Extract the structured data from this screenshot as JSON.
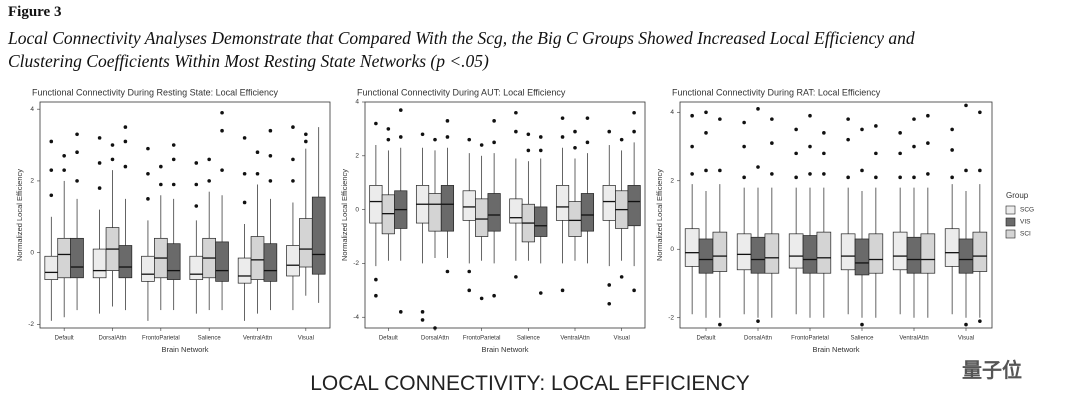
{
  "figure_label": "Figure 3",
  "caption": [
    "Local Connectivity Analyses Demonstrate that Compared With the Scg, the Big C Groups Showed Increased Local Efficiency and",
    "Clustering Coefficients Within Most Resting State Networks (p <.05)"
  ],
  "footer": "LOCAL CONNECTIVITY: LOCAL EFFICIENCY",
  "watermark": "量子位",
  "chart_data": [
    {
      "type": "box",
      "title": "Functional Connectivity During Resting State: Local Efficiency",
      "xlabel": "Brain Network",
      "ylabel": "Normalized Local Efficiency",
      "categories": [
        "Default",
        "DorsalAttn",
        "FrontoParietal",
        "Salience",
        "VentralAttn",
        "Visual"
      ],
      "ylim": [
        -2.1,
        4.2
      ],
      "yticks": [
        -2,
        0,
        2,
        4
      ],
      "legend": false,
      "series": [
        {
          "color": "#ececec",
          "values": [
            [
              -1.9,
              -0.75,
              -0.55,
              -0.1,
              1.0
            ],
            [
              -1.7,
              -0.7,
              -0.5,
              0.1,
              1.2
            ],
            [
              -1.9,
              -0.8,
              -0.6,
              -0.1,
              0.9
            ],
            [
              -1.7,
              -0.75,
              -0.6,
              -0.1,
              0.9
            ],
            [
              -1.9,
              -0.85,
              -0.65,
              -0.15,
              0.8
            ],
            [
              -1.6,
              -0.65,
              -0.35,
              0.2,
              1.4
            ]
          ],
          "outliers": [
            [
              1.6,
              2.3,
              3.1
            ],
            [
              1.8,
              2.5,
              3.2
            ],
            [
              1.5,
              2.2,
              2.9
            ],
            [
              1.3,
              1.9,
              2.5
            ],
            [
              1.4,
              2.2,
              3.2
            ],
            [
              2.0,
              2.6,
              3.5
            ]
          ]
        },
        {
          "color": "#d4d4d4",
          "values": [
            [
              -1.8,
              -0.7,
              -0.05,
              0.4,
              2.0
            ],
            [
              -1.5,
              -0.5,
              0.1,
              0.7,
              2.3
            ],
            [
              -1.6,
              -0.7,
              -0.15,
              0.4,
              1.6
            ],
            [
              -1.6,
              -0.7,
              -0.15,
              0.4,
              1.7
            ],
            [
              -1.7,
              -0.75,
              -0.2,
              0.45,
              1.9
            ],
            [
              -1.2,
              -0.4,
              0.1,
              0.95,
              2.9
            ]
          ],
          "outliers": [
            [
              2.3,
              2.7
            ],
            [
              2.6,
              3.0
            ],
            [
              1.9,
              2.4
            ],
            [
              2.0,
              2.6
            ],
            [
              2.2,
              2.8
            ],
            [
              3.1,
              3.3
            ]
          ]
        },
        {
          "color": "#6a6a6a",
          "values": [
            [
              -1.6,
              -0.7,
              -0.4,
              0.4,
              1.5
            ],
            [
              -1.6,
              -0.7,
              -0.4,
              0.2,
              1.5
            ],
            [
              -1.6,
              -0.75,
              -0.5,
              0.25,
              1.5
            ],
            [
              -1.6,
              -0.8,
              -0.5,
              0.3,
              1.6
            ],
            [
              -1.6,
              -0.8,
              -0.5,
              0.25,
              1.5
            ],
            [
              -1.4,
              -0.6,
              -0.05,
              1.55,
              3.5
            ]
          ],
          "outliers": [
            [
              2.0,
              2.8,
              3.3
            ],
            [
              2.4,
              3.1,
              3.5
            ],
            [
              1.9,
              2.6,
              3.0
            ],
            [
              2.3,
              3.4,
              3.9
            ],
            [
              2.0,
              2.7,
              3.4
            ],
            []
          ]
        }
      ]
    },
    {
      "type": "box",
      "title": "Functional Connectivity During AUT: Local Efficiency",
      "xlabel": "Brain Network",
      "ylabel": "Normalized Local Efficiency",
      "categories": [
        "Default",
        "DorsalAttn",
        "FrontoParietal",
        "Salience",
        "VentralAttn",
        "Visual"
      ],
      "ylim": [
        -4.4,
        4.0
      ],
      "yticks": [
        -4,
        -2,
        0,
        2,
        4
      ],
      "legend": false,
      "series": [
        {
          "color": "#ececec",
          "values": [
            [
              -2.1,
              -0.5,
              0.3,
              0.9,
              2.4
            ],
            [
              -2.0,
              -0.5,
              0.2,
              0.9,
              2.3
            ],
            [
              -2.0,
              -0.4,
              0.1,
              0.7,
              2.1
            ],
            [
              -1.9,
              -0.5,
              -0.3,
              0.4,
              1.9
            ],
            [
              -2.0,
              -0.4,
              0.1,
              0.9,
              2.3
            ],
            [
              -2.1,
              -0.4,
              0.3,
              0.9,
              2.4
            ]
          ],
          "outliers": [
            [
              -2.6,
              -3.2,
              3.2
            ],
            [
              -3.8,
              -4.1,
              2.8
            ],
            [
              -2.3,
              -3.0,
              2.6
            ],
            [
              -2.5,
              2.9,
              3.6
            ],
            [
              -3.0,
              2.7,
              3.4
            ],
            [
              -2.8,
              -3.5,
              2.9
            ]
          ]
        },
        {
          "color": "#d4d4d4",
          "values": [
            [
              -1.9,
              -0.9,
              -0.15,
              0.55,
              2.2
            ],
            [
              -1.8,
              -0.8,
              0.2,
              0.6,
              2.2
            ],
            [
              -1.9,
              -1.0,
              -0.35,
              0.4,
              2.0
            ],
            [
              -1.9,
              -1.2,
              -0.5,
              0.2,
              1.8
            ],
            [
              -1.9,
              -1.0,
              -0.4,
              0.3,
              1.9
            ],
            [
              -1.9,
              -0.7,
              0.0,
              0.7,
              2.2
            ]
          ],
          "outliers": [
            [
              2.6,
              3.0
            ],
            [
              -4.4,
              2.6
            ],
            [
              -3.3,
              2.4
            ],
            [
              2.2,
              2.8
            ],
            [
              2.3,
              2.9
            ],
            [
              -2.5,
              2.6
            ]
          ]
        },
        {
          "color": "#6a6a6a",
          "values": [
            [
              -1.9,
              -0.7,
              0.0,
              0.7,
              2.3
            ],
            [
              -1.8,
              -0.8,
              0.2,
              0.9,
              2.3
            ],
            [
              -2.0,
              -0.8,
              -0.2,
              0.6,
              2.1
            ],
            [
              -2.0,
              -1.0,
              -0.6,
              0.1,
              1.9
            ],
            [
              -2.0,
              -0.8,
              -0.2,
              0.6,
              2.1
            ],
            [
              -2.1,
              -0.6,
              0.3,
              0.9,
              2.5
            ]
          ],
          "outliers": [
            [
              -3.8,
              2.7,
              3.7
            ],
            [
              -2.3,
              2.7,
              3.3
            ],
            [
              -3.2,
              2.5,
              3.3
            ],
            [
              -3.1,
              2.2,
              2.7
            ],
            [
              2.5,
              3.4
            ],
            [
              -3.0,
              2.9,
              3.6
            ]
          ]
        }
      ]
    },
    {
      "type": "box",
      "title": "Functional Connectivity During RAT: Local Efficiency",
      "xlabel": "Brain Network",
      "ylabel": "Normalized Local Efficiency",
      "categories": [
        "Default",
        "DorsalAttn",
        "FrontoParietal",
        "Salience",
        "VentralAttn",
        "Visual"
      ],
      "ylim": [
        -2.3,
        4.3
      ],
      "yticks": [
        -2,
        0,
        2,
        4
      ],
      "legend": true,
      "legend_title": "Group",
      "series": [
        {
          "name": "SCG",
          "color": "#ececec",
          "values": [
            [
              -1.9,
              -0.5,
              -0.1,
              0.6,
              1.9
            ],
            [
              -1.9,
              -0.6,
              -0.15,
              0.45,
              1.8
            ],
            [
              -1.9,
              -0.55,
              -0.2,
              0.45,
              1.8
            ],
            [
              -1.9,
              -0.6,
              -0.2,
              0.45,
              1.8
            ],
            [
              -1.9,
              -0.6,
              -0.2,
              0.5,
              1.8
            ],
            [
              -1.9,
              -0.5,
              -0.1,
              0.6,
              1.9
            ]
          ],
          "outliers": [
            [
              2.2,
              3.0,
              3.9
            ],
            [
              2.1,
              3.0,
              3.7
            ],
            [
              2.1,
              2.8,
              3.5
            ],
            [
              2.1,
              3.2,
              3.8
            ],
            [
              2.1,
              2.8,
              3.4
            ],
            [
              2.1,
              2.9,
              3.5
            ]
          ]
        },
        {
          "name": "VIS",
          "color": "#6a6a6a",
          "values": [
            [
              -2.0,
              -0.7,
              -0.3,
              0.3,
              1.7
            ],
            [
              -2.0,
              -0.7,
              -0.3,
              0.35,
              1.8
            ],
            [
              -2.0,
              -0.7,
              -0.3,
              0.4,
              1.8
            ],
            [
              -2.0,
              -0.75,
              -0.4,
              0.3,
              1.7
            ],
            [
              -2.0,
              -0.7,
              -0.3,
              0.35,
              1.8
            ],
            [
              -2.0,
              -0.7,
              -0.3,
              0.3,
              1.7
            ]
          ],
          "outliers": [
            [
              2.3,
              3.4,
              4.0
            ],
            [
              -2.1,
              2.4,
              4.1
            ],
            [
              2.2,
              3.0,
              3.9
            ],
            [
              -2.2,
              2.3,
              3.5
            ],
            [
              2.1,
              3.0,
              3.8
            ],
            [
              -2.2,
              2.3,
              4.2
            ]
          ]
        },
        {
          "name": "SCI",
          "color": "#d4d4d4",
          "values": [
            [
              -2.0,
              -0.65,
              -0.2,
              0.5,
              1.9
            ],
            [
              -2.0,
              -0.7,
              -0.25,
              0.45,
              1.8
            ],
            [
              -2.0,
              -0.7,
              -0.25,
              0.5,
              1.8
            ],
            [
              -2.0,
              -0.7,
              -0.3,
              0.45,
              1.8
            ],
            [
              -2.0,
              -0.7,
              -0.3,
              0.45,
              1.8
            ],
            [
              -2.0,
              -0.65,
              -0.2,
              0.5,
              1.9
            ]
          ],
          "outliers": [
            [
              -2.2,
              2.3,
              3.8
            ],
            [
              2.2,
              3.1,
              3.8
            ],
            [
              2.2,
              2.8,
              3.4
            ],
            [
              2.1,
              2.8,
              3.6
            ],
            [
              2.2,
              3.1,
              3.9
            ],
            [
              -2.1,
              2.3,
              4.0
            ]
          ]
        }
      ]
    }
  ]
}
